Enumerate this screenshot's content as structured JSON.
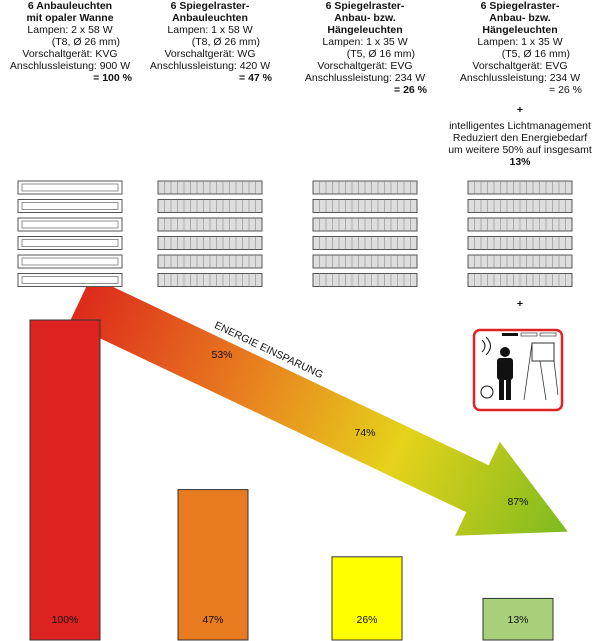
{
  "chart_data": {
    "type": "bar",
    "columns": [
      {
        "heading": [
          "6 Anbauleuchten",
          "mit opaler Wanne"
        ],
        "details": [
          "Lampen: 2 x 58 W",
          "(T8, Ø 26 mm)",
          "Vorschaltgerät: KVG",
          "Anschlussleistung: 900 W"
        ],
        "share": "= 100 %"
      },
      {
        "heading": [
          "6 Spiegelraster-",
          "Anbauleuchten"
        ],
        "details": [
          "Lampen: 1 x 58 W",
          "(T8, Ø 26 mm)",
          "Vorschaltgerät: WG",
          "Anschlussleistung: 420 W"
        ],
        "share": "= 47 %"
      },
      {
        "heading": [
          "6 Spiegelraster-",
          "Anbau- bzw.",
          "Hängeleuchten"
        ],
        "details": [
          "Lampen: 1 x 35 W",
          "(T5, Ø 16 mm)",
          "Vorschaltgerät: EVG",
          "Anschlussleistung: 234 W"
        ],
        "share": "= 26 %"
      },
      {
        "heading": [
          "6 Spiegelraster-",
          "Anbau- bzw.",
          "Hängeleuchten"
        ],
        "details": [
          "Lampen: 1 x 35 W",
          "(T5, Ø 16 mm)",
          "Vorschaltgerät: EVG",
          "Anschlussleistung: 234 W"
        ],
        "share": "= 26 %"
      }
    ],
    "extra": {
      "plus": "+",
      "lines": [
        "intelligentes Lichtmanagement",
        "Reduziert den Energiebedarf",
        "um weitere 50% auf insgesamt"
      ],
      "total": "13%"
    },
    "arrow": {
      "text": "ENERGIE EINSPARUNG",
      "labels": [
        "53%",
        "74%",
        "87%"
      ]
    },
    "values": [
      100,
      47,
      26,
      13
    ],
    "value_labels": [
      "100%",
      "47%",
      "26%",
      "13%"
    ],
    "colors": [
      "#dd2320",
      "#e87a1f",
      "#ffff00",
      "#a8d07a"
    ]
  }
}
